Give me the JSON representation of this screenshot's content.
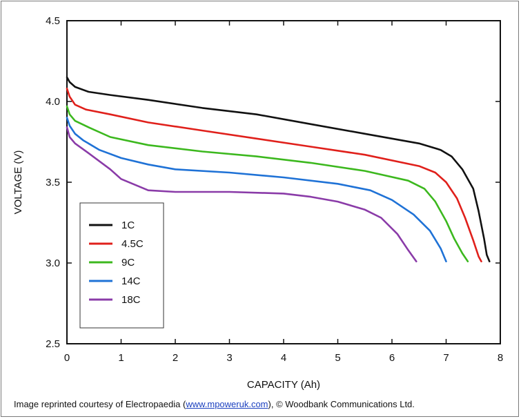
{
  "chart_data": {
    "type": "line",
    "title": "",
    "xlabel": "CAPACITY (Ah)",
    "ylabel": "VOLTAGE (V)",
    "xlim": [
      0,
      8
    ],
    "ylim": [
      2.5,
      4.5
    ],
    "xticks": [
      0,
      1,
      2,
      3,
      4,
      5,
      6,
      7,
      8
    ],
    "yticks": [
      2.5,
      3.0,
      3.5,
      4.0,
      4.5
    ],
    "ytick_labels": [
      "2.5",
      "3.0",
      "3.5",
      "4.0",
      "4.5"
    ],
    "legend_placement": "lower-left",
    "grid": false,
    "series": [
      {
        "name": "1C",
        "color": "#111111",
        "points": [
          [
            0,
            4.15
          ],
          [
            0.05,
            4.12
          ],
          [
            0.15,
            4.09
          ],
          [
            0.4,
            4.06
          ],
          [
            0.8,
            4.04
          ],
          [
            1.5,
            4.01
          ],
          [
            2.5,
            3.96
          ],
          [
            3.5,
            3.92
          ],
          [
            4.5,
            3.86
          ],
          [
            5.5,
            3.8
          ],
          [
            6.5,
            3.74
          ],
          [
            6.9,
            3.7
          ],
          [
            7.1,
            3.66
          ],
          [
            7.3,
            3.58
          ],
          [
            7.5,
            3.46
          ],
          [
            7.6,
            3.32
          ],
          [
            7.7,
            3.15
          ],
          [
            7.75,
            3.05
          ],
          [
            7.8,
            3.01
          ]
        ]
      },
      {
        "name": "4.5C",
        "color": "#e0201b",
        "points": [
          [
            0,
            4.08
          ],
          [
            0.05,
            4.03
          ],
          [
            0.15,
            3.98
          ],
          [
            0.35,
            3.95
          ],
          [
            0.8,
            3.92
          ],
          [
            1.5,
            3.87
          ],
          [
            2.5,
            3.82
          ],
          [
            3.5,
            3.77
          ],
          [
            4.5,
            3.72
          ],
          [
            5.5,
            3.67
          ],
          [
            6.5,
            3.6
          ],
          [
            6.8,
            3.56
          ],
          [
            7.0,
            3.5
          ],
          [
            7.2,
            3.4
          ],
          [
            7.35,
            3.28
          ],
          [
            7.5,
            3.14
          ],
          [
            7.6,
            3.04
          ],
          [
            7.65,
            3.01
          ]
        ]
      },
      {
        "name": "9C",
        "color": "#3cb81e",
        "points": [
          [
            0,
            3.97
          ],
          [
            0.05,
            3.92
          ],
          [
            0.15,
            3.88
          ],
          [
            0.4,
            3.84
          ],
          [
            0.8,
            3.78
          ],
          [
            1.5,
            3.73
          ],
          [
            2.5,
            3.69
          ],
          [
            3.5,
            3.66
          ],
          [
            4.5,
            3.62
          ],
          [
            5.5,
            3.57
          ],
          [
            6.3,
            3.51
          ],
          [
            6.6,
            3.46
          ],
          [
            6.8,
            3.38
          ],
          [
            7.0,
            3.26
          ],
          [
            7.15,
            3.15
          ],
          [
            7.3,
            3.06
          ],
          [
            7.4,
            3.01
          ]
        ]
      },
      {
        "name": "14C",
        "color": "#1f72d6",
        "points": [
          [
            0,
            3.9
          ],
          [
            0.05,
            3.85
          ],
          [
            0.15,
            3.8
          ],
          [
            0.3,
            3.76
          ],
          [
            0.6,
            3.7
          ],
          [
            1.0,
            3.65
          ],
          [
            1.5,
            3.61
          ],
          [
            2.0,
            3.58
          ],
          [
            3.0,
            3.56
          ],
          [
            4.0,
            3.53
          ],
          [
            5.0,
            3.49
          ],
          [
            5.6,
            3.45
          ],
          [
            6.0,
            3.39
          ],
          [
            6.4,
            3.3
          ],
          [
            6.7,
            3.2
          ],
          [
            6.9,
            3.09
          ],
          [
            7.0,
            3.01
          ]
        ]
      },
      {
        "name": "18C",
        "color": "#8a3ba8",
        "points": [
          [
            0,
            3.84
          ],
          [
            0.05,
            3.78
          ],
          [
            0.15,
            3.74
          ],
          [
            0.4,
            3.68
          ],
          [
            0.8,
            3.58
          ],
          [
            1.0,
            3.52
          ],
          [
            1.5,
            3.45
          ],
          [
            2.0,
            3.44
          ],
          [
            3.0,
            3.44
          ],
          [
            4.0,
            3.43
          ],
          [
            4.5,
            3.41
          ],
          [
            5.0,
            3.38
          ],
          [
            5.5,
            3.33
          ],
          [
            5.8,
            3.28
          ],
          [
            6.1,
            3.18
          ],
          [
            6.3,
            3.08
          ],
          [
            6.45,
            3.01
          ]
        ]
      }
    ]
  },
  "credit": {
    "prefix": "Image reprinted courtesy of Electropaedia (",
    "link_text": "www.mpoweruk.com",
    "suffix": "), © Woodbank Communications Ltd."
  }
}
